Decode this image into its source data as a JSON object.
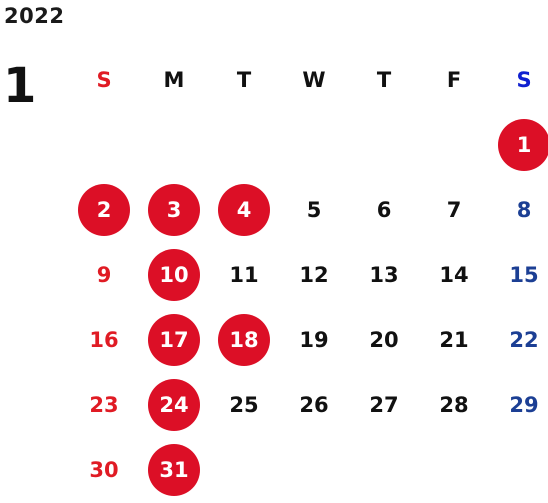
{
  "calendar": {
    "year": "2022",
    "month": "1",
    "weekdays": [
      {
        "label": "S",
        "type": "sun"
      },
      {
        "label": "M",
        "type": ""
      },
      {
        "label": "T",
        "type": ""
      },
      {
        "label": "W",
        "type": ""
      },
      {
        "label": "T",
        "type": ""
      },
      {
        "label": "F",
        "type": ""
      },
      {
        "label": "S",
        "type": "sat"
      }
    ],
    "first_weekday_index": 6,
    "days": [
      "1",
      "2",
      "3",
      "4",
      "5",
      "6",
      "7",
      "8",
      "9",
      "10",
      "11",
      "12",
      "13",
      "14",
      "15",
      "16",
      "17",
      "18",
      "19",
      "20",
      "21",
      "22",
      "23",
      "24",
      "25",
      "26",
      "27",
      "28",
      "29",
      "30",
      "31"
    ],
    "highlighted_days": [
      "1",
      "2",
      "3",
      "4",
      "10",
      "17",
      "18",
      "24",
      "31"
    ],
    "colors": {
      "highlight": "#dc0f26",
      "sunday": "#e01b24",
      "saturday": "#1c3f94",
      "saturday_header": "#1020d0"
    }
  }
}
